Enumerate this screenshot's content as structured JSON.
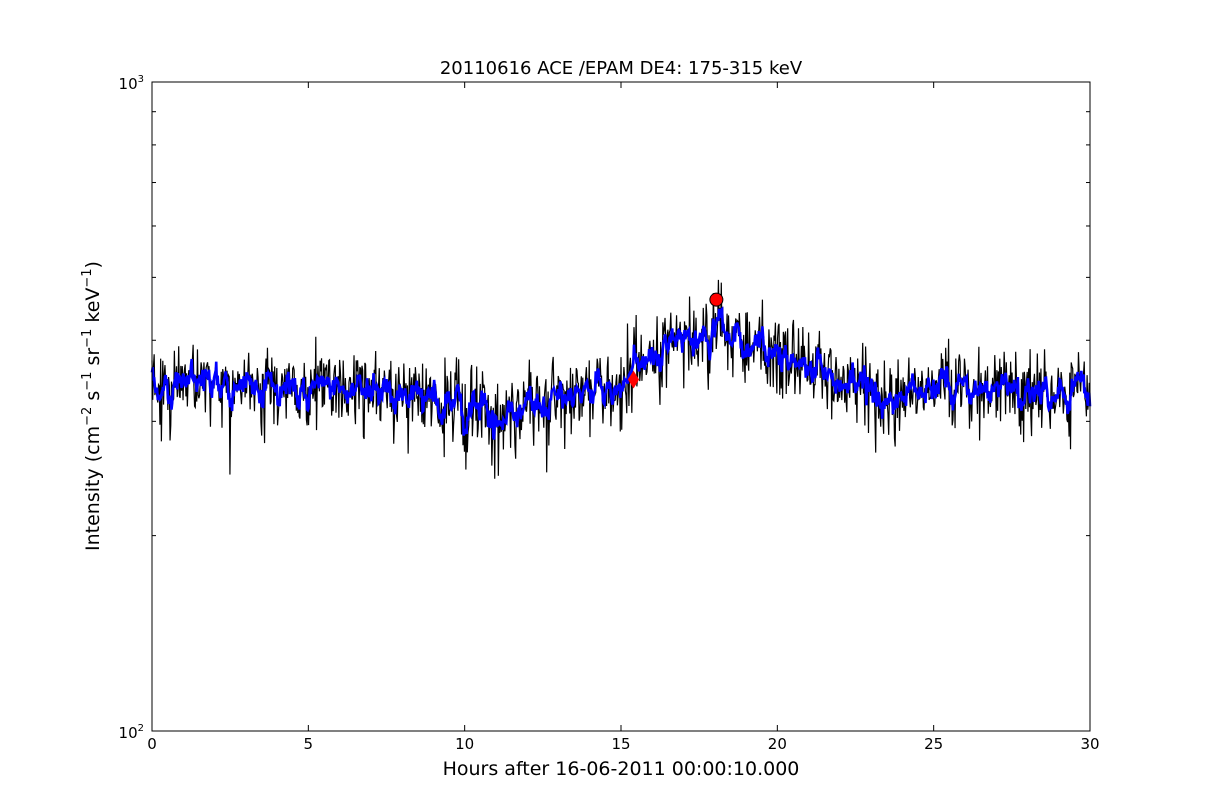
{
  "chart_data": {
    "type": "line",
    "title": "20110616 ACE /EPAM DE4: 175-315 keV",
    "xlabel": "Hours after 16-06-2011 00:00:10.000",
    "ylabel": {
      "base": "Intensity (cm",
      "parts": [
        {
          "text": "−2",
          "sup": true
        },
        {
          "text": " s",
          "sup": false
        },
        {
          "text": "−1",
          "sup": true
        },
        {
          "text": " sr",
          "sup": false
        },
        {
          "text": "−1",
          "sup": true
        },
        {
          "text": " keV",
          "sup": false
        },
        {
          "text": "−1",
          "sup": true
        },
        {
          "text": ")",
          "sup": false
        }
      ]
    },
    "xlim": [
      0,
      30
    ],
    "ylim": [
      100,
      1000
    ],
    "yscale": "log",
    "grid": false,
    "x_ticks": [
      {
        "value": 0,
        "label": "0"
      },
      {
        "value": 5,
        "label": "5"
      },
      {
        "value": 10,
        "label": "10"
      },
      {
        "value": 15,
        "label": "15"
      },
      {
        "value": 20,
        "label": "20"
      },
      {
        "value": 25,
        "label": "25"
      },
      {
        "value": 30,
        "label": "30"
      }
    ],
    "y_ticks": [
      {
        "value": 100,
        "base": "10",
        "exp": "2"
      },
      {
        "value": 1000,
        "base": "10",
        "exp": "3"
      }
    ],
    "baseline_profile": {
      "x": [
        0,
        2,
        4,
        6,
        8,
        9,
        10,
        11,
        12,
        13,
        14,
        15,
        15.5,
        16,
        17,
        17.5,
        18,
        18.5,
        19,
        20,
        21,
        22,
        23,
        24,
        25,
        26,
        27,
        28,
        29,
        30
      ],
      "y": [
        340,
        340,
        335,
        338,
        335,
        325,
        315,
        310,
        318,
        325,
        335,
        340,
        365,
        385,
        405,
        410,
        415,
        410,
        400,
        385,
        370,
        350,
        335,
        330,
        335,
        335,
        338,
        338,
        328,
        335
      ]
    },
    "series": [
      {
        "name": "",
        "color": "#000000",
        "style": "raw noisy intensity, thin line",
        "noise_sigma_log10": 0.03
      },
      {
        "name": "",
        "color": "#0000ff",
        "style": "smoothed intensity, thicker line",
        "noise_sigma_log10": 0.015
      }
    ],
    "markers": [
      {
        "shape": "diamond",
        "x": 15.4,
        "y": 348,
        "color": "#ff0000"
      },
      {
        "shape": "circle",
        "x": 18.05,
        "y": 462,
        "color": "#ff0000"
      }
    ]
  }
}
